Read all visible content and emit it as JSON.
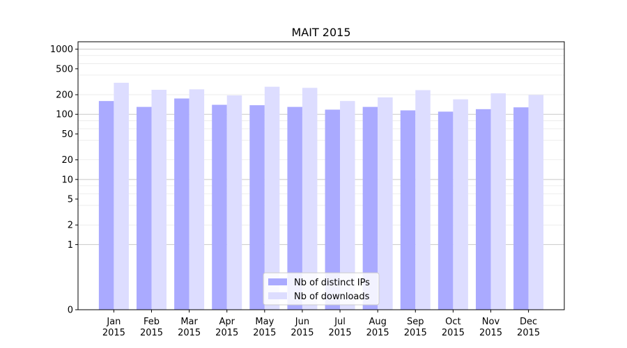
{
  "chart_data": {
    "type": "bar",
    "title": "MAIT 2015",
    "xlabel": "",
    "ylabel": "",
    "yscale": "symlog",
    "ylim": [
      0,
      1300
    ],
    "yticks": [
      0,
      1,
      2,
      5,
      10,
      20,
      50,
      100,
      200,
      500,
      1000
    ],
    "ytick_labels": [
      "0",
      "1",
      "2",
      "5",
      "10",
      "20",
      "50",
      "100",
      "200",
      "500",
      "1000"
    ],
    "grid": true,
    "legend_position": "lower center",
    "categories": [
      [
        "Jan",
        "2015"
      ],
      [
        "Feb",
        "2015"
      ],
      [
        "Mar",
        "2015"
      ],
      [
        "Apr",
        "2015"
      ],
      [
        "May",
        "2015"
      ],
      [
        "Jun",
        "2015"
      ],
      [
        "Jul",
        "2015"
      ],
      [
        "Aug",
        "2015"
      ],
      [
        "Sep",
        "2015"
      ],
      [
        "Oct",
        "2015"
      ],
      [
        "Nov",
        "2015"
      ],
      [
        "Dec",
        "2015"
      ]
    ],
    "series": [
      {
        "name": "Nb of distinct IPs",
        "color": "#aaaaff",
        "values": [
          160,
          130,
          175,
          140,
          138,
          130,
          118,
          130,
          115,
          110,
          120,
          128
        ]
      },
      {
        "name": "Nb of downloads",
        "color": "#ddddff",
        "values": [
          305,
          238,
          242,
          195,
          265,
          255,
          160,
          182,
          235,
          170,
          210,
          198
        ]
      }
    ]
  }
}
